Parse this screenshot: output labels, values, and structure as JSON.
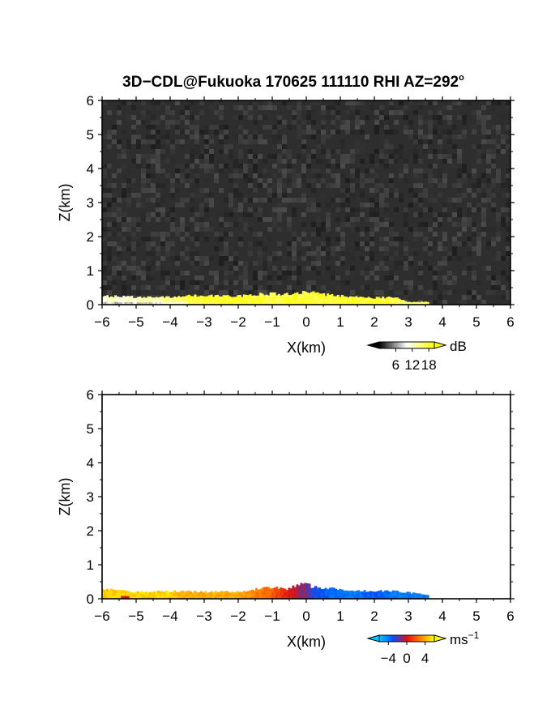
{
  "title": {
    "main": "3D−CDL@Fukuoka 170625 111110 RHI AZ=292",
    "sup": "o"
  },
  "chart_data": [
    {
      "type": "heatmap",
      "panel": "snr",
      "xlabel": "X(km)",
      "ylabel": "Z(km)",
      "xlim": [
        -6,
        6
      ],
      "ylim": [
        0,
        6
      ],
      "xticks": [
        "−6",
        "−5",
        "−4",
        "−3",
        "−2",
        "−1",
        "0",
        "1",
        "2",
        "3",
        "4",
        "5",
        "6"
      ],
      "yticks": [
        "0",
        "1",
        "2",
        "3",
        "4",
        "5",
        "6"
      ],
      "grid": false,
      "background": "noise",
      "echo_band": [
        {
          "x": -5.8,
          "top": 0.25,
          "value": 12
        },
        {
          "x": -5.0,
          "top": 0.22,
          "value": 12
        },
        {
          "x": -4.0,
          "top": 0.22,
          "value": 14
        },
        {
          "x": -3.5,
          "top": 0.28,
          "value": 18
        },
        {
          "x": -3.0,
          "top": 0.26,
          "value": 18
        },
        {
          "x": -2.0,
          "top": 0.25,
          "value": 18
        },
        {
          "x": -1.5,
          "top": 0.3,
          "value": 18
        },
        {
          "x": -1.0,
          "top": 0.32,
          "value": 18
        },
        {
          "x": -0.5,
          "top": 0.3,
          "value": 18
        },
        {
          "x": 0.0,
          "top": 0.38,
          "value": 18
        },
        {
          "x": 0.5,
          "top": 0.3,
          "value": 18
        },
        {
          "x": 1.0,
          "top": 0.26,
          "value": 18
        },
        {
          "x": 1.5,
          "top": 0.24,
          "value": 18
        },
        {
          "x": 2.0,
          "top": 0.2,
          "value": 18
        },
        {
          "x": 2.6,
          "top": 0.22,
          "value": 18
        },
        {
          "x": 3.0,
          "top": 0.08,
          "value": 14
        },
        {
          "x": 3.6,
          "top": 0.08,
          "value": 18
        }
      ],
      "colorbar": {
        "unit": "dB",
        "ticks": [
          "6",
          "12",
          "18"
        ],
        "range": [
          0,
          20
        ],
        "colors": [
          "#000000",
          "#ffffff",
          "#ffff00"
        ]
      }
    },
    {
      "type": "heatmap",
      "panel": "doppler_velocity",
      "xlabel": "X(km)",
      "ylabel": "Z(km)",
      "xlim": [
        -6,
        6
      ],
      "ylim": [
        0,
        6
      ],
      "xticks": [
        "−6",
        "−5",
        "−4",
        "−3",
        "−2",
        "−1",
        "0",
        "1",
        "2",
        "3",
        "4",
        "5",
        "6"
      ],
      "yticks": [
        "0",
        "1",
        "2",
        "3",
        "4",
        "5",
        "6"
      ],
      "grid": false,
      "background": "none",
      "echo_band": [
        {
          "x": -5.9,
          "top": 0.28,
          "value": 5
        },
        {
          "x": -5.5,
          "top": 0.25,
          "value": 5
        },
        {
          "x": -5.0,
          "top": 0.2,
          "value": 5
        },
        {
          "x": -4.0,
          "top": 0.22,
          "value": 5
        },
        {
          "x": -3.5,
          "top": 0.22,
          "value": 4
        },
        {
          "x": -3.0,
          "top": 0.2,
          "value": 4
        },
        {
          "x": -2.0,
          "top": 0.2,
          "value": 4
        },
        {
          "x": -1.5,
          "top": 0.28,
          "value": 3
        },
        {
          "x": -1.0,
          "top": 0.32,
          "value": 2
        },
        {
          "x": -0.5,
          "top": 0.3,
          "value": 0
        },
        {
          "x": -0.1,
          "top": 0.45,
          "value": -1
        },
        {
          "x": 0.3,
          "top": 0.32,
          "value": -3
        },
        {
          "x": 1.0,
          "top": 0.28,
          "value": -4
        },
        {
          "x": 1.5,
          "top": 0.24,
          "value": -4
        },
        {
          "x": 2.0,
          "top": 0.22,
          "value": -3
        },
        {
          "x": 2.6,
          "top": 0.22,
          "value": -4
        },
        {
          "x": 3.6,
          "top": 0.12,
          "value": -4
        }
      ],
      "colorbar": {
        "unit": "ms",
        "unit_sup": "−1",
        "ticks": [
          "−4",
          "0",
          "4"
        ],
        "range": [
          -6,
          6
        ],
        "colors": [
          "#00c8ff",
          "#0050ff",
          "#e01010",
          "#ff8000",
          "#ffff00"
        ]
      }
    }
  ]
}
